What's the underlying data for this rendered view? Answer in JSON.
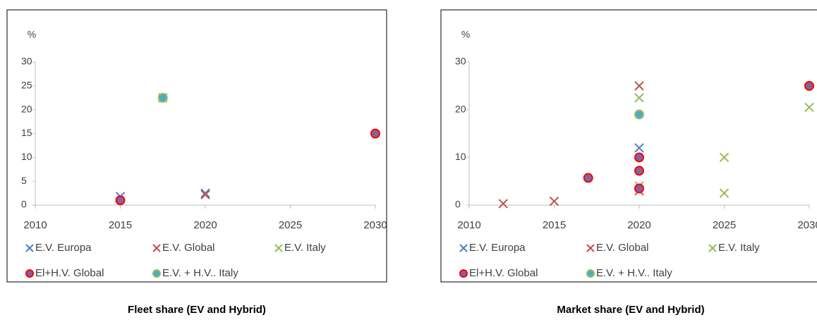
{
  "chart_data": [
    {
      "type": "scatter",
      "title": "Fleet share (EV and Hybrid)",
      "ylabel": "%",
      "xlim": [
        2010,
        2030
      ],
      "xticks": [
        2010,
        2015,
        2020,
        2025,
        2030
      ],
      "ylim": [
        0,
        30
      ],
      "yticks": [
        0,
        5,
        10,
        15,
        20,
        25,
        30
      ],
      "series": [
        {
          "name": "E.V. Europa",
          "marker": "x",
          "color": "#4f81bd",
          "x": [
            2015,
            2020
          ],
          "values": [
            1.8,
            2.5
          ]
        },
        {
          "name": "E.V. Global",
          "marker": "x",
          "color": "#c0504d",
          "x": [
            2020
          ],
          "values": [
            2.2
          ]
        },
        {
          "name": "E.V. Italy",
          "marker": "x",
          "color": "#9bbb59",
          "x": [
            2017.5
          ],
          "values": [
            22.5
          ]
        },
        {
          "name": "El+H.V. Global",
          "marker": "o",
          "color": "#8064a2",
          "edgecolor": "#ff0000",
          "x": [
            2015,
            2030
          ],
          "values": [
            1,
            15
          ]
        },
        {
          "name": "E.V. + H.V.. Italy",
          "marker": "o",
          "color": "#4bacc6",
          "edgecolor": "#9bbb59",
          "x": [
            2017.5
          ],
          "values": [
            22.5
          ]
        }
      ]
    },
    {
      "type": "scatter",
      "title": "Market share (EV and Hybrid)",
      "ylabel": "%",
      "xlim": [
        2010,
        2030
      ],
      "xticks": [
        2010,
        2015,
        2020,
        2025,
        2030
      ],
      "ylim": [
        0,
        30
      ],
      "yticks": [
        0,
        10,
        20,
        30
      ],
      "series": [
        {
          "name": "E.V. Europa",
          "marker": "x",
          "color": "#4f81bd",
          "x": [
            2020
          ],
          "values": [
            12
          ]
        },
        {
          "name": "E.V. Global",
          "marker": "x",
          "color": "#c0504d",
          "x": [
            2012,
            2015,
            2020,
            2020
          ],
          "values": [
            0.3,
            0.8,
            25,
            3
          ]
        },
        {
          "name": "E.V. Italy",
          "marker": "x",
          "color": "#9bbb59",
          "x": [
            2020,
            2020,
            2025,
            2025,
            2030
          ],
          "values": [
            22.5,
            4,
            10,
            2.5,
            20.5
          ]
        },
        {
          "name": "El+H.V. Global",
          "marker": "o",
          "color": "#8064a2",
          "edgecolor": "#ff0000",
          "x": [
            2017,
            2020,
            2020,
            2020,
            2030
          ],
          "values": [
            5.7,
            10,
            7.2,
            3.5,
            25
          ]
        },
        {
          "name": "E.V. + H.V.. Italy",
          "marker": "o",
          "color": "#4bacc6",
          "edgecolor": "#9bbb59",
          "x": [
            2020
          ],
          "values": [
            19
          ]
        }
      ]
    }
  ]
}
